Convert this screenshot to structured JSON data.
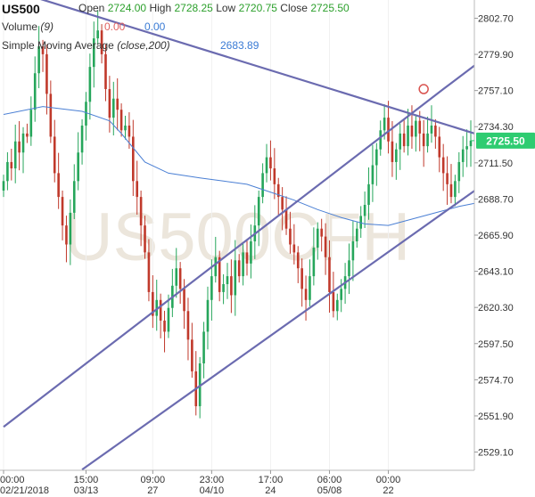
{
  "header": {
    "symbol": "US500",
    "open_label": "Open",
    "open_value": "2724.00",
    "high_label": "High",
    "high_value": "2728.25",
    "low_label": "Low",
    "low_value": "2720.75",
    "close_label": "Close",
    "close_value": "2725.50",
    "volume_label": "Volume",
    "volume_param": "(9)",
    "volume_value_1": "0.00",
    "volume_value_2": "0.00",
    "sma_label": "Simple Moving Average",
    "sma_param": "(close,200)",
    "sma_value": "2683.89"
  },
  "watermark": "US500CFH",
  "colors": {
    "up": "#26a65b",
    "down": "#c0392b",
    "sma": "#4a7fd4",
    "trendline": "#6b6bb0",
    "price_badge": "#2ecc71",
    "marker": "#d9534f"
  },
  "chart_data": {
    "type": "candlestick",
    "symbol": "US500",
    "last_price": "2725.50",
    "ylim": [
      2517.6,
      2814.2
    ],
    "y_ticks": [
      "2802.70",
      "2779.90",
      "2757.10",
      "2734.30",
      "2711.50",
      "2688.70",
      "2665.90",
      "2643.10",
      "2620.30",
      "2597.50",
      "2574.70",
      "2551.90",
      "2529.10"
    ],
    "x_ticks": [
      {
        "time": "00:00",
        "date": "02/21/2018"
      },
      {
        "time": "15:00",
        "date": "03/13"
      },
      {
        "time": "09:00",
        "date": "27"
      },
      {
        "time": "23:00",
        "date": "04/10"
      },
      {
        "time": "17:00",
        "date": "24"
      },
      {
        "time": "06:00",
        "date": "05/08"
      },
      {
        "time": "00:00",
        "date": "22"
      }
    ],
    "x_tick_index": [
      0,
      21,
      38,
      53,
      68,
      83,
      98
    ],
    "n_bars": 120,
    "series": [
      {
        "kind": "price",
        "closes": [
          2700,
          2712,
          2708,
          2725,
          2718,
          2730,
          2728,
          2745,
          2768,
          2785,
          2780,
          2755,
          2728,
          2705,
          2690,
          2672,
          2660,
          2680,
          2700,
          2718,
          2735,
          2750,
          2772,
          2790,
          2795,
          2780,
          2758,
          2740,
          2752,
          2745,
          2732,
          2735,
          2728,
          2700,
          2690,
          2672,
          2655,
          2630,
          2615,
          2625,
          2612,
          2605,
          2620,
          2634,
          2645,
          2632,
          2618,
          2600,
          2580,
          2558,
          2585,
          2605,
          2625,
          2640,
          2652,
          2630,
          2635,
          2640,
          2628,
          2650,
          2640,
          2655,
          2648,
          2662,
          2672,
          2690,
          2705,
          2715,
          2708,
          2698,
          2690,
          2682,
          2670,
          2660,
          2655,
          2645,
          2632,
          2625,
          2640,
          2658,
          2670,
          2665,
          2652,
          2630,
          2618,
          2625,
          2632,
          2640,
          2650,
          2662,
          2670,
          2678,
          2685,
          2698,
          2710,
          2720,
          2732,
          2740,
          2725,
          2712,
          2720,
          2730,
          2722,
          2735,
          2728,
          2738,
          2730,
          2722,
          2730,
          2735,
          2728,
          2715,
          2705,
          2698,
          2690,
          2700,
          2712,
          2720,
          2722,
          2725.5
        ]
      },
      {
        "kind": "sma",
        "name": "Simple Moving Average (close,200)",
        "points": [
          [
            0,
            2742
          ],
          [
            10,
            2747
          ],
          [
            20,
            2744
          ],
          [
            27,
            2738
          ],
          [
            30,
            2730
          ],
          [
            36,
            2712
          ],
          [
            42,
            2705
          ],
          [
            50,
            2702
          ],
          [
            56,
            2700
          ],
          [
            62,
            2698
          ],
          [
            68,
            2693
          ],
          [
            74,
            2688
          ],
          [
            80,
            2682
          ],
          [
            86,
            2677
          ],
          [
            92,
            2673
          ],
          [
            98,
            2672
          ],
          [
            104,
            2676
          ],
          [
            110,
            2680
          ],
          [
            116,
            2684
          ],
          [
            120,
            2686
          ]
        ]
      }
    ],
    "trendlines": [
      {
        "name": "upper-resistance",
        "points": [
          [
            0,
            2822
          ],
          [
            120,
            2730
          ]
        ]
      },
      {
        "name": "channel-top",
        "points": [
          [
            0,
            2545
          ],
          [
            112,
            2758
          ],
          [
            120,
            2773
          ]
        ]
      },
      {
        "name": "channel-bottom",
        "points": [
          [
            20,
            2518
          ],
          [
            120,
            2694
          ]
        ]
      }
    ],
    "marker": {
      "x": 107,
      "y": 2758
    }
  }
}
